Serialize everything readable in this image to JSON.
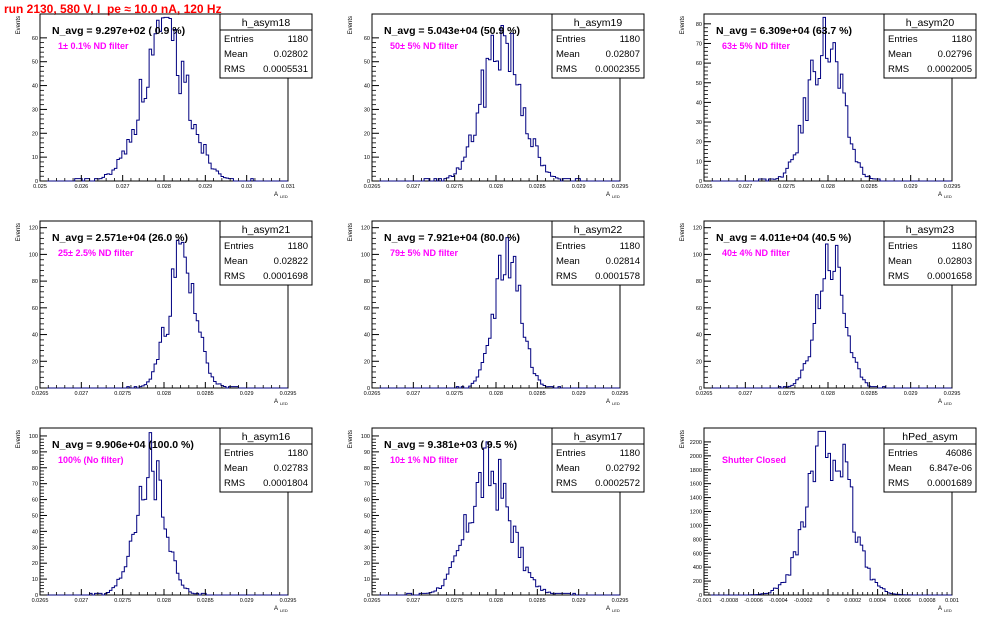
{
  "header": {
    "title": "run 2130,   580 V, I_pe ≈ 10.0 nA, 120 Hz"
  },
  "colors": {
    "hist_line": "#000080",
    "title_color": "#ff0000",
    "filter_label": "#ff00ff",
    "axis": "#000000"
  },
  "chart_data": [
    {
      "type": "histogram",
      "hist_name": "h_asym18",
      "n_avg": "N_avg = 9.297e+02 ( 0.9 %)",
      "filter_label": "1± 0.1% ND filter",
      "stats": {
        "entries": "1180",
        "mean": "0.02802",
        "rms": "0.0005531"
      },
      "ylabel": "Events",
      "xlabel": "A",
      "xlabel_sub": "LED",
      "xlim": [
        0.025,
        0.031
      ],
      "ylim": [
        0,
        70
      ],
      "xticks": [
        0.025,
        0.026,
        0.027,
        0.028,
        0.029,
        0.03,
        0.031
      ],
      "xtick_labels": [
        "0.025",
        "0.026",
        "0.027",
        "0.028",
        "0.029",
        "0.03",
        "0.031"
      ],
      "yticks": [
        0,
        10,
        20,
        30,
        40,
        50,
        60
      ],
      "ytick_labels": [
        "0",
        "10",
        "20",
        "30",
        "40",
        "50",
        "60"
      ],
      "mean_value": 0.02802,
      "sigma_value": 0.0005531,
      "peak_value": 60,
      "n_bins": 100,
      "seed": 18
    },
    {
      "type": "histogram",
      "hist_name": "h_asym19",
      "n_avg": "N_avg = 5.043e+04 (50.9 %)",
      "filter_label": "50± 5% ND filter",
      "stats": {
        "entries": "1180",
        "mean": "0.02807",
        "rms": "0.0002355"
      },
      "ylabel": "Events",
      "xlabel": "A",
      "xlabel_sub": "LED",
      "xlim": [
        0.0265,
        0.0295
      ],
      "ylim": [
        0,
        70
      ],
      "xticks": [
        0.0265,
        0.027,
        0.0275,
        0.028,
        0.0285,
        0.029,
        0.0295
      ],
      "xtick_labels": [
        "0.0265",
        "0.027",
        "0.0275",
        "0.028",
        "0.0285",
        "0.029",
        "0.0295"
      ],
      "yticks": [
        0,
        10,
        20,
        30,
        40,
        50,
        60
      ],
      "ytick_labels": [
        "0",
        "10",
        "20",
        "30",
        "40",
        "50",
        "60"
      ],
      "mean_value": 0.02807,
      "sigma_value": 0.0002355,
      "peak_value": 60,
      "n_bins": 100,
      "seed": 19
    },
    {
      "type": "histogram",
      "hist_name": "h_asym20",
      "n_avg": "N_avg = 6.309e+04 (63.7 %)",
      "filter_label": "63± 5% ND filter",
      "stats": {
        "entries": "1180",
        "mean": "0.02796",
        "rms": "0.0002005"
      },
      "ylabel": "Events",
      "xlabel": "A",
      "xlabel_sub": "LED",
      "xlim": [
        0.0265,
        0.0295
      ],
      "ylim": [
        0,
        85
      ],
      "xticks": [
        0.0265,
        0.027,
        0.0275,
        0.028,
        0.0285,
        0.029,
        0.0295
      ],
      "xtick_labels": [
        "0.0265",
        "0.027",
        "0.0275",
        "0.028",
        "0.0285",
        "0.029",
        "0.0295"
      ],
      "yticks": [
        0,
        10,
        20,
        30,
        40,
        50,
        60,
        70,
        80
      ],
      "ytick_labels": [
        "0",
        "10",
        "20",
        "30",
        "40",
        "50",
        "60",
        "70",
        "80"
      ],
      "mean_value": 0.02796,
      "sigma_value": 0.0002005,
      "peak_value": 72,
      "n_bins": 100,
      "seed": 20
    },
    {
      "type": "histogram",
      "hist_name": "h_asym21",
      "n_avg": "N_avg = 2.571e+04 (26.0 %)",
      "filter_label": "25± 2.5% ND filter",
      "stats": {
        "entries": "1180",
        "mean": "0.02822",
        "rms": "0.0001698"
      },
      "ylabel": "Events",
      "xlabel": "A",
      "xlabel_sub": "LED",
      "xlim": [
        0.0265,
        0.0295
      ],
      "ylim": [
        0,
        125
      ],
      "xticks": [
        0.0265,
        0.027,
        0.0275,
        0.028,
        0.0285,
        0.029,
        0.0295
      ],
      "xtick_labels": [
        "0.0265",
        "0.027",
        "0.0275",
        "0.028",
        "0.0285",
        "0.029",
        "0.0295"
      ],
      "yticks": [
        0,
        20,
        40,
        60,
        80,
        100,
        120
      ],
      "ytick_labels": [
        "0",
        "20",
        "40",
        "60",
        "80",
        "100",
        "120"
      ],
      "mean_value": 0.02822,
      "sigma_value": 0.0001698,
      "peak_value": 94,
      "n_bins": 100,
      "seed": 21
    },
    {
      "type": "histogram",
      "hist_name": "h_asym22",
      "n_avg": "N_avg = 7.921e+04 (80.0 %)",
      "filter_label": "79± 5% ND filter",
      "stats": {
        "entries": "1180",
        "mean": "0.02814",
        "rms": "0.0001578"
      },
      "ylabel": "Events",
      "xlabel": "A",
      "xlabel_sub": "LED",
      "xlim": [
        0.0265,
        0.0295
      ],
      "ylim": [
        0,
        125
      ],
      "xticks": [
        0.0265,
        0.027,
        0.0275,
        0.028,
        0.0285,
        0.029,
        0.0295
      ],
      "xtick_labels": [
        "0.0265",
        "0.027",
        "0.0275",
        "0.028",
        "0.0285",
        "0.029",
        "0.0295"
      ],
      "yticks": [
        0,
        20,
        40,
        60,
        80,
        100,
        120
      ],
      "ytick_labels": [
        "0",
        "20",
        "40",
        "60",
        "80",
        "100",
        "120"
      ],
      "mean_value": 0.02814,
      "sigma_value": 0.0001578,
      "peak_value": 102,
      "n_bins": 100,
      "seed": 22
    },
    {
      "type": "histogram",
      "hist_name": "h_asym23",
      "n_avg": "N_avg = 4.011e+04 (40.5 %)",
      "filter_label": "40± 4% ND filter",
      "stats": {
        "entries": "1180",
        "mean": "0.02803",
        "rms": "0.0001658"
      },
      "ylabel": "Events",
      "xlabel": "A",
      "xlabel_sub": "LED",
      "xlim": [
        0.0265,
        0.0295
      ],
      "ylim": [
        0,
        125
      ],
      "xticks": [
        0.0265,
        0.027,
        0.0275,
        0.028,
        0.0285,
        0.029,
        0.0295
      ],
      "xtick_labels": [
        "0.0265",
        "0.027",
        "0.0275",
        "0.028",
        "0.0285",
        "0.029",
        "0.0295"
      ],
      "yticks": [
        0,
        20,
        40,
        60,
        80,
        100,
        120
      ],
      "ytick_labels": [
        "0",
        "20",
        "40",
        "60",
        "80",
        "100",
        "120"
      ],
      "mean_value": 0.02803,
      "sigma_value": 0.0001658,
      "peak_value": 98,
      "n_bins": 100,
      "seed": 23
    },
    {
      "type": "histogram",
      "hist_name": "h_asym16",
      "n_avg": "N_avg = 9.906e+04 (100.0 %)",
      "filter_label": "100% (No filter)",
      "stats": {
        "entries": "1180",
        "mean": "0.02783",
        "rms": "0.0001804"
      },
      "ylabel": "Events",
      "xlabel": "A",
      "xlabel_sub": "LED",
      "xlim": [
        0.0265,
        0.0295
      ],
      "ylim": [
        0,
        105
      ],
      "xticks": [
        0.0265,
        0.027,
        0.0275,
        0.028,
        0.0285,
        0.029,
        0.0295
      ],
      "xtick_labels": [
        "0.0265",
        "0.027",
        "0.0275",
        "0.028",
        "0.0285",
        "0.029",
        "0.0295"
      ],
      "yticks": [
        0,
        10,
        20,
        30,
        40,
        50,
        60,
        70,
        80,
        90,
        100
      ],
      "ytick_labels": [
        "0",
        "10",
        "20",
        "30",
        "40",
        "50",
        "60",
        "70",
        "80",
        "90",
        "100"
      ],
      "mean_value": 0.02783,
      "sigma_value": 0.0001804,
      "peak_value": 81,
      "n_bins": 100,
      "seed": 16
    },
    {
      "type": "histogram",
      "hist_name": "h_asym17",
      "n_avg": "N_avg = 9.381e+03 ( 9.5 %)",
      "filter_label": "10± 1% ND filter",
      "stats": {
        "entries": "1180",
        "mean": "0.02792",
        "rms": "0.0002572"
      },
      "ylabel": "Events",
      "xlabel": "A",
      "xlabel_sub": "LED",
      "xlim": [
        0.0265,
        0.0295
      ],
      "ylim": [
        0,
        105
      ],
      "xticks": [
        0.0265,
        0.027,
        0.0275,
        0.028,
        0.0285,
        0.029,
        0.0295
      ],
      "xtick_labels": [
        "0.0265",
        "0.027",
        "0.0275",
        "0.028",
        "0.0285",
        "0.029",
        "0.0295"
      ],
      "yticks": [
        0,
        10,
        20,
        30,
        40,
        50,
        60,
        70,
        80,
        90,
        100
      ],
      "ytick_labels": [
        "0",
        "10",
        "20",
        "30",
        "40",
        "50",
        "60",
        "70",
        "80",
        "90",
        "100"
      ],
      "mean_value": 0.02792,
      "sigma_value": 0.0002572,
      "peak_value": 77,
      "n_bins": 100,
      "seed": 17
    },
    {
      "type": "histogram",
      "hist_name": "hPed_asym",
      "n_avg": "",
      "filter_label": "Shutter Closed",
      "stats": {
        "entries": "46086",
        "mean": "6.847e-06",
        "rms": "0.0001689"
      },
      "ylabel": "Events",
      "xlabel": "A",
      "xlabel_sub": "LED",
      "xlim": [
        -0.001,
        0.001
      ],
      "ylim": [
        0,
        2400
      ],
      "xticks": [
        -0.001,
        -0.0008,
        -0.0006,
        -0.0004,
        -0.0002,
        0,
        0.0002,
        0.0004,
        0.0006,
        0.0008,
        0.001
      ],
      "xtick_labels": [
        "-0.001",
        "-0.0008",
        "-0.0006",
        "-0.0004",
        "-0.0002",
        "0",
        "0.0002",
        "0.0004",
        "0.0006",
        "0.0008",
        "0.001"
      ],
      "yticks": [
        0,
        200,
        400,
        600,
        800,
        1000,
        1200,
        1400,
        1600,
        1800,
        2000,
        2200
      ],
      "ytick_labels": [
        "0",
        "200",
        "400",
        "600",
        "800",
        "1000",
        "1200",
        "1400",
        "1600",
        "1800",
        "2000",
        "2200"
      ],
      "mean_value": 6.847e-06,
      "sigma_value": 0.0001689,
      "peak_value": 2240,
      "n_bins": 100,
      "seed": 99
    }
  ]
}
